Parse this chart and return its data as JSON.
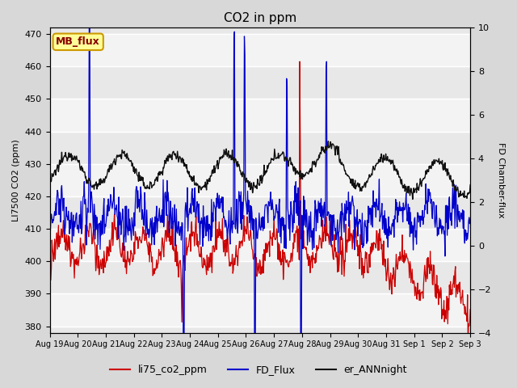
{
  "title": "CO2 in ppm",
  "ylabel_left": "LI7500 CO2 (ppm)",
  "ylabel_right": "FD Chamber-flux",
  "ylim_left": [
    378,
    472
  ],
  "ylim_right": [
    -4,
    10
  ],
  "yticks_left": [
    380,
    390,
    400,
    410,
    420,
    430,
    440,
    450,
    460,
    470
  ],
  "yticks_right": [
    -4,
    -2,
    0,
    2,
    4,
    6,
    8,
    10
  ],
  "xlabel_ticks": [
    "Aug 19",
    "Aug 20",
    "Aug 21",
    "Aug 22",
    "Aug 23",
    "Aug 24",
    "Aug 25",
    "Aug 26",
    "Aug 27",
    "Aug 28",
    "Aug 29",
    "Aug 30",
    "Aug 31",
    "Sep 1",
    "Sep 2",
    "Sep 3"
  ],
  "bg_color": "#d8d8d8",
  "plot_bg_color": "#e8e8e8",
  "stripe_color": "#d0d0d0",
  "line_colors": {
    "li75_co2_ppm": "#cc0000",
    "FD_Flux": "#0000cc",
    "er_ANNnight": "#111111"
  },
  "annotation_text": "MB_flux",
  "annotation_color": "#880000",
  "annotation_bg": "#ffff99",
  "annotation_border": "#cc9900"
}
